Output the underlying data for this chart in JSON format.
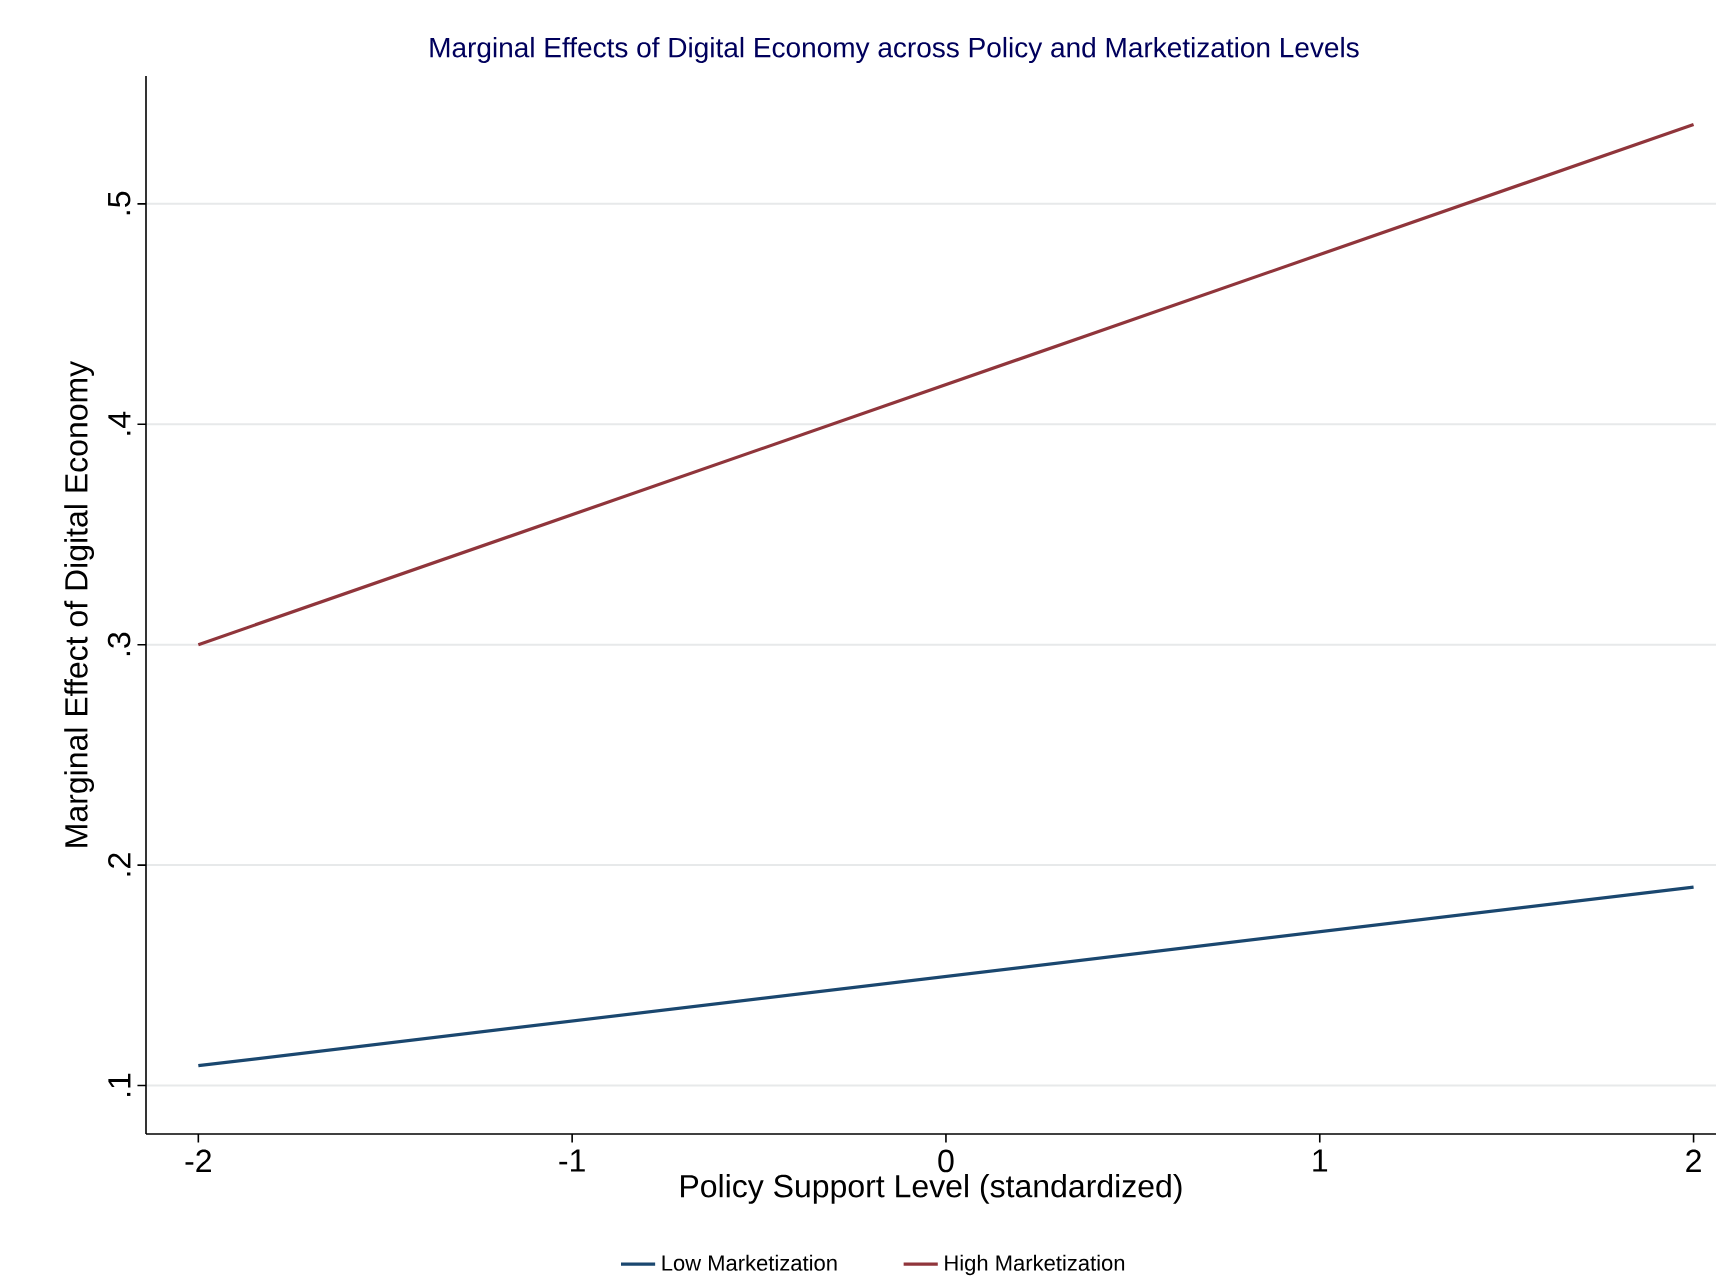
{
  "chart_data": {
    "type": "line",
    "title": "Marginal Effects of Digital Economy across Policy and Marketization Levels",
    "xlabel": "Policy Support Level (standardized)",
    "ylabel": "Marginal Effect of Digital Economy",
    "x": [
      -2,
      2
    ],
    "series": [
      {
        "name": "Low Marketization",
        "color": "#1a476f",
        "values": [
          0.109,
          0.19
        ]
      },
      {
        "name": "High Marketization",
        "color": "#90353b",
        "values": [
          0.3,
          0.536
        ]
      }
    ],
    "xlim": [
      -2.14,
      2.06
    ],
    "ylim": [
      0.078,
      0.558
    ],
    "xticks": [
      -2,
      -1,
      0,
      1,
      2
    ],
    "yticks": [
      {
        "value": 0.1,
        "label": ".1"
      },
      {
        "value": 0.2,
        "label": ".2"
      },
      {
        "value": 0.3,
        "label": ".3"
      },
      {
        "value": 0.4,
        "label": ".4"
      },
      {
        "value": 0.5,
        "label": ".5"
      }
    ],
    "grid": "y",
    "legend": "bottom",
    "marker": "none",
    "line_style": "solid"
  }
}
